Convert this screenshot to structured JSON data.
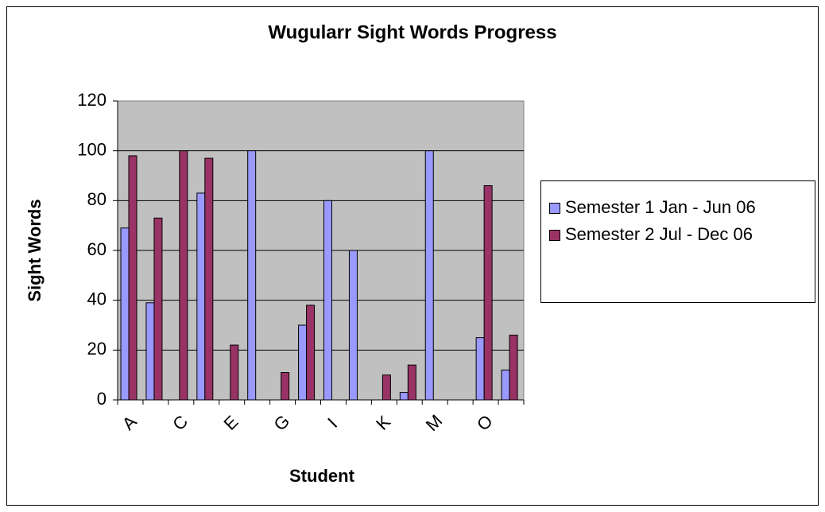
{
  "chart_data": {
    "type": "bar",
    "title": "Wugularr Sight Words Progress",
    "x_label": "Student",
    "y_label": "Sight Words",
    "categories": [
      "A",
      null,
      "C",
      null,
      "E",
      null,
      "G",
      null,
      "I",
      null,
      "K",
      null,
      "M",
      null,
      "O",
      null
    ],
    "series": [
      {
        "name": "Semester 1 Jan - Jun 06",
        "color": "#9999ff",
        "values": [
          69,
          39,
          null,
          83,
          null,
          100,
          null,
          30,
          80,
          60,
          null,
          3,
          100,
          null,
          25,
          12
        ]
      },
      {
        "name": "Semester 2 Jul - Dec 06",
        "color": "#993366",
        "values": [
          98,
          73,
          100,
          97,
          22,
          null,
          11,
          38,
          null,
          null,
          10,
          14,
          null,
          null,
          86,
          26
        ]
      }
    ],
    "ylim": [
      0,
      120
    ],
    "yticks": [
      0,
      20,
      40,
      60,
      80,
      100,
      120
    ],
    "grid": true,
    "legend": "right"
  }
}
